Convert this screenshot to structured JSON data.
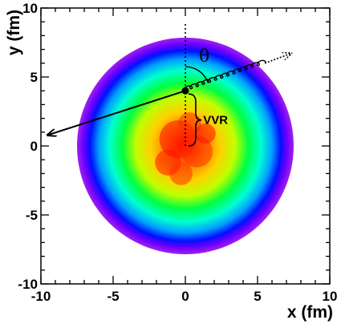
{
  "chart_data": {
    "type": "heatmap",
    "xlabel": "x (fm)",
    "ylabel": "y (fm)",
    "xlim": [
      -10,
      10
    ],
    "ylim": [
      -10,
      10
    ],
    "x_ticks": [
      {
        "value": -10,
        "label": "-10"
      },
      {
        "value": -5,
        "label": "-5"
      },
      {
        "value": 0,
        "label": "0"
      },
      {
        "value": 5,
        "label": "5"
      },
      {
        "value": 10,
        "label": "10"
      }
    ],
    "y_ticks": [
      {
        "value": -10,
        "label": "-10"
      },
      {
        "value": -5,
        "label": "-5"
      },
      {
        "value": 0,
        "label": "0"
      },
      {
        "value": 5,
        "label": "5"
      },
      {
        "value": 10,
        "label": "10"
      }
    ],
    "grid": false,
    "density": {
      "center": [
        0,
        0
      ],
      "outer_radius": 7.5,
      "colormap": [
        "#ff0000",
        "#ff8000",
        "#ffd000",
        "#c0ff00",
        "#00ff40",
        "#00ffd0",
        "#00a0ff",
        "#0010ff",
        "#6a00ff",
        "#a020f0"
      ]
    },
    "annotations": {
      "production_point": [
        0,
        4
      ],
      "dotted_vertical_line": {
        "x": 0,
        "y_from": 0,
        "y_to": 9
      },
      "gluon_path": {
        "from": [
          0,
          4
        ],
        "to": [
          5.5,
          6
        ]
      },
      "dotted_arrow": {
        "from": [
          5.5,
          6
        ],
        "to": [
          7.3,
          6.7
        ]
      },
      "jet_arrow": {
        "from": [
          0,
          4
        ],
        "to": [
          -9.5,
          0.8
        ]
      },
      "vvr_brace": {
        "x": 0,
        "y_from": 0,
        "y_to": 4
      },
      "theta_label": "θ",
      "vvr_label": "VVR"
    }
  }
}
